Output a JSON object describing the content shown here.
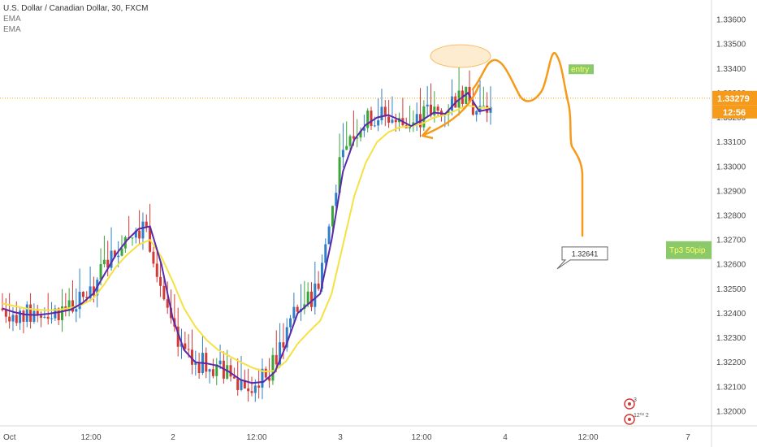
{
  "legend": {
    "symbol_title": "U.S. Dollar / Canadian Dollar, 30, FXCM",
    "ema1": "EMA",
    "ema2": "EMA"
  },
  "chart_data": {
    "type": "candlestick",
    "title": "U.S. Dollar / Canadian Dollar, 30, FXCM",
    "ylim": [
      1.3194,
      1.3368
    ],
    "y_ticks": [
      "1.33600",
      "1.33500",
      "1.33400",
      "1.33300",
      "1.33200",
      "1.33100",
      "1.33000",
      "1.32900",
      "1.32800",
      "1.32700",
      "1.32600",
      "1.32500",
      "1.32400",
      "1.32300",
      "1.32200",
      "1.32100",
      "1.32000"
    ],
    "x_ticks": [
      "Oct",
      "12:00",
      "2",
      "12:00",
      "3",
      "12:00",
      "4",
      "12:00",
      "7"
    ],
    "current_price": "1.33279",
    "countdown": "12:56",
    "colors": {
      "up": "#2e7fc8",
      "up_alt": "#3aa63a",
      "down": "#d33a36",
      "ema_fast": "#5b2aa8",
      "ema_slow": "#f5e142",
      "drawing": "#f59a1b",
      "price_line": "#f59a1b",
      "target_box": "#8bc96a"
    },
    "price_tag": {
      "text": "1.32641",
      "value": 1.32641
    },
    "entry_label": {
      "text": "entry",
      "value": 1.33397
    },
    "target_label": {
      "text": "Tp3    50pip",
      "value": 1.32658
    },
    "ema_fast": [
      1.3242,
      1.32405,
      1.32395,
      1.32393,
      1.32398,
      1.32405,
      1.32415,
      1.3244,
      1.3248,
      1.3256,
      1.3264,
      1.327,
      1.32745,
      1.32755,
      1.326,
      1.3238,
      1.3225,
      1.322,
      1.32195,
      1.32185,
      1.3216,
      1.32128,
      1.32115,
      1.3212,
      1.3216,
      1.3227,
      1.324,
      1.3244,
      1.3248,
      1.327,
      1.3298,
      1.3311,
      1.3317,
      1.332,
      1.3321,
      1.3319,
      1.33165,
      1.3319,
      1.3322,
      1.33215,
      1.33265,
      1.333,
      1.33225,
      1.33235
    ],
    "ema_slow": [
      1.3244,
      1.3243,
      1.3242,
      1.32415,
      1.32412,
      1.32415,
      1.32422,
      1.32435,
      1.3246,
      1.3252,
      1.3259,
      1.3264,
      1.3268,
      1.327,
      1.3263,
      1.3253,
      1.3242,
      1.32345,
      1.3229,
      1.3225,
      1.32225,
      1.322,
      1.32178,
      1.32162,
      1.32165,
      1.32205,
      1.32275,
      1.32325,
      1.3237,
      1.3248,
      1.3268,
      1.3288,
      1.33015,
      1.331,
      1.3314,
      1.3316,
      1.33165,
      1.33175,
      1.332,
      1.3321,
      1.3323,
      1.3325,
      1.3324,
      1.33238
    ]
  },
  "axis": {
    "price_tag": "1.33279",
    "countdown": "12:56"
  },
  "icons": {
    "event1": "flag-icon",
    "event2": "flag-icon"
  },
  "event_labels": {
    "e1": "3",
    "e2": "12⁰² 2"
  }
}
